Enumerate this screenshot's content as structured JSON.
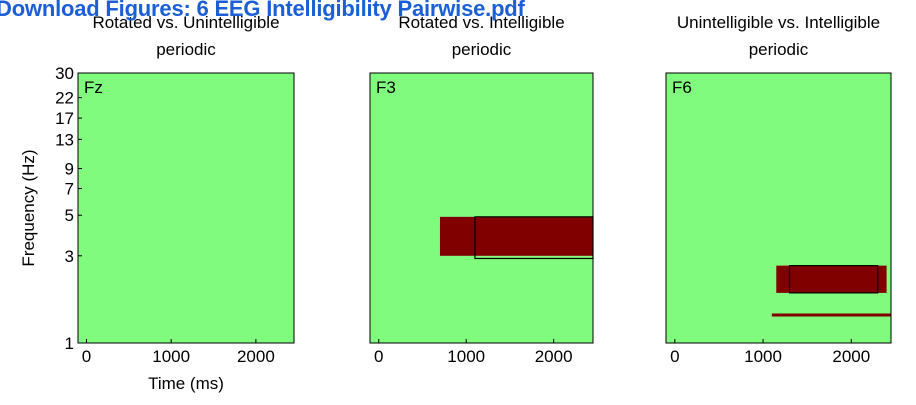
{
  "banner": {
    "text": "Download Figures: 6 EEG Intelligibility Pairwise.pdf"
  },
  "colors": {
    "background": "#80fb7e",
    "significant": "#800000",
    "frame": "#000000",
    "banner": "#1a5fd6"
  },
  "chart_data": [
    {
      "type": "heatmap",
      "title_line1": "Rotated vs. Unintelligible",
      "title_line2": "periodic",
      "channel": "Fz",
      "xlabel": "Time (ms)",
      "ylabel": "Frequency (Hz)",
      "xlim": [
        -100,
        2450
      ],
      "ylim": [
        1,
        30
      ],
      "yscale": "log",
      "xticks": [
        0,
        1000,
        2000
      ],
      "yticks": [
        1,
        3,
        5,
        7,
        9,
        13,
        17,
        22,
        30
      ],
      "significant_regions": [],
      "boxes": []
    },
    {
      "type": "heatmap",
      "title_line1": "Rotated vs. Intelligible",
      "title_line2": "periodic",
      "channel": "F3",
      "xlabel": "",
      "ylabel": "",
      "xlim": [
        -100,
        2450
      ],
      "ylim": [
        1,
        30
      ],
      "yscale": "log",
      "xticks": [
        0,
        1000,
        2000
      ],
      "yticks": [],
      "significant_regions": [
        {
          "x": [
            700,
            2450
          ],
          "y": [
            3.0,
            4.9
          ]
        }
      ],
      "boxes": [
        {
          "x": [
            1100,
            2450
          ],
          "y": [
            2.9,
            4.9
          ]
        }
      ]
    },
    {
      "type": "heatmap",
      "title_line1": "Unintelligible vs. Intelligible",
      "title_line2": "periodic",
      "channel": "F6",
      "xlabel": "",
      "ylabel": "",
      "xlim": [
        -100,
        2450
      ],
      "ylim": [
        1,
        30
      ],
      "yscale": "log",
      "xticks": [
        0,
        1000,
        2000
      ],
      "yticks": [],
      "significant_regions": [
        {
          "x": [
            1150,
            2400
          ],
          "y": [
            1.88,
            2.65
          ]
        },
        {
          "x": [
            1100,
            2450
          ],
          "y": [
            1.4,
            1.45
          ]
        }
      ],
      "boxes": [
        {
          "x": [
            1300,
            2300
          ],
          "y": [
            1.88,
            2.65
          ]
        }
      ]
    }
  ]
}
